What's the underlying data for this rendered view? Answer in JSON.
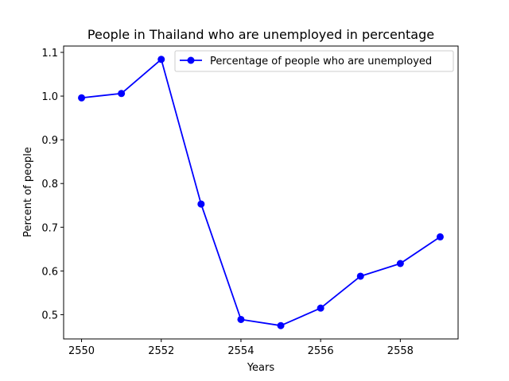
{
  "chart_data": {
    "type": "line",
    "title": "People in Thailand who are unemployed in percentage",
    "xlabel": "Years",
    "ylabel": "Percent of people",
    "x": [
      2550,
      2551,
      2552,
      2553,
      2554,
      2555,
      2556,
      2557,
      2558,
      2559
    ],
    "series": [
      {
        "name": "Percentage of people who are unemployed",
        "values": [
          0.996,
          1.006,
          1.084,
          0.753,
          0.489,
          0.475,
          0.515,
          0.588,
          0.617,
          0.678
        ],
        "color": "#0000ff",
        "marker": "circle"
      }
    ],
    "xticks": [
      2550,
      2552,
      2554,
      2556,
      2558
    ],
    "xtick_labels": [
      "2550",
      "2552",
      "2554",
      "2556",
      "2558"
    ],
    "yticks": [
      0.5,
      0.6,
      0.7,
      0.8,
      0.9,
      1.0,
      1.1
    ],
    "ytick_labels": [
      "0.5",
      "0.6",
      "0.7",
      "0.8",
      "0.9",
      "1.0",
      "1.1"
    ],
    "xlim": [
      2549.55,
      2559.45
    ],
    "ylim": [
      0.4445,
      1.1145
    ],
    "grid": false,
    "legend_position": "top-right"
  }
}
